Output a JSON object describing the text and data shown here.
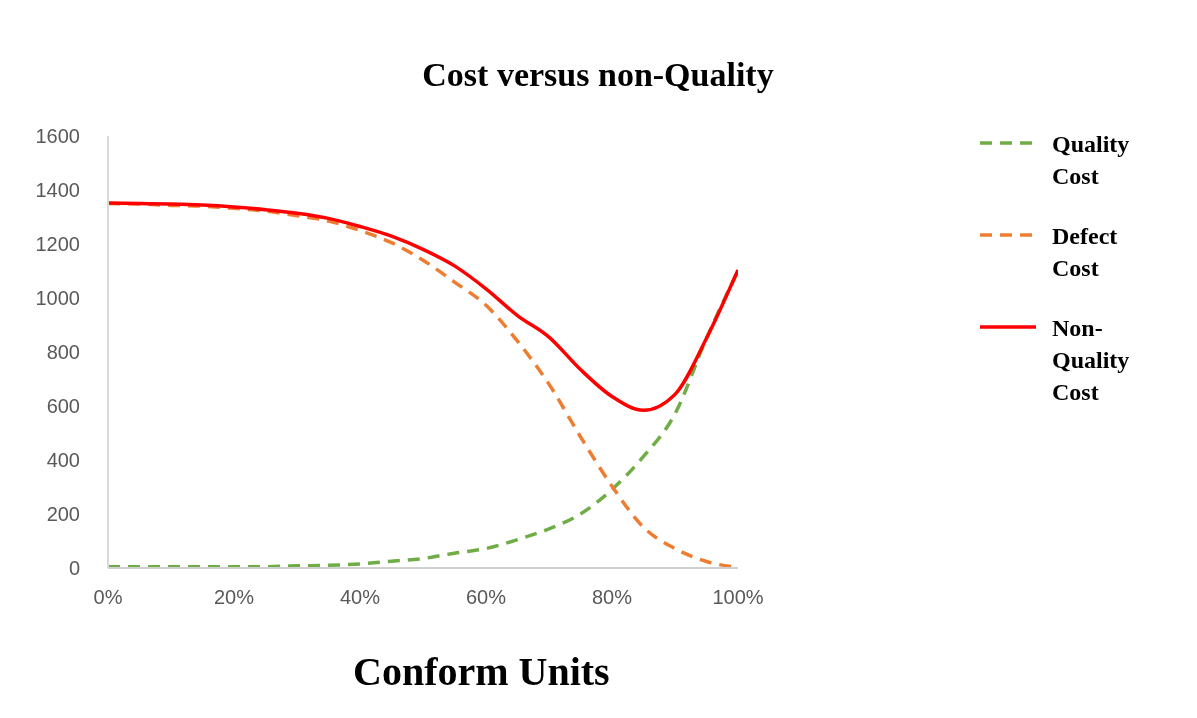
{
  "chart_data": {
    "type": "line",
    "title": "Cost versus non-Quality",
    "xlabel": "Conform Units",
    "x": [
      0,
      5,
      10,
      15,
      20,
      25,
      30,
      35,
      40,
      45,
      50,
      55,
      60,
      65,
      70,
      75,
      80,
      85,
      90,
      95,
      100
    ],
    "series": [
      {
        "name": "Quality Cost",
        "color": "#70ad47",
        "line_style": "dashed",
        "values": [
          5,
          5,
          5,
          5,
          5,
          5,
          8,
          10,
          15,
          25,
          35,
          55,
          72,
          105,
          145,
          200,
          291,
          413,
          571,
          851,
          1100
        ]
      },
      {
        "name": "Defect Cost",
        "color": "#ed7d31",
        "line_style": "dashed",
        "values": [
          1350,
          1348,
          1343,
          1340,
          1332,
          1322,
          1305,
          1285,
          1250,
          1205,
          1140,
          1059,
          973,
          840,
          681,
          486,
          303,
          151,
          72,
          24,
          2
        ]
      },
      {
        "name": "Non-Quality Cost",
        "color": "#ff0000",
        "line_style": "solid",
        "values": [
          1352,
          1350,
          1348,
          1344,
          1337,
          1327,
          1314,
          1295,
          1265,
          1229,
          1180,
          1119,
          1034,
          935,
          855,
          735,
          635,
          584,
          643,
          851,
          1104
        ]
      }
    ],
    "xlim": [
      0,
      100
    ],
    "xticks": [
      {
        "value": 0,
        "label": "0%"
      },
      {
        "value": 20,
        "label": "20%"
      },
      {
        "value": 40,
        "label": "40%"
      },
      {
        "value": 60,
        "label": "60%"
      },
      {
        "value": 80,
        "label": "80%"
      },
      {
        "value": 100,
        "label": "100%"
      }
    ],
    "ylim": [
      0,
      1600
    ],
    "yticks": [
      0,
      200,
      400,
      600,
      800,
      1000,
      1200,
      1400,
      1600
    ],
    "grid": false,
    "legend": "right",
    "marker": "none"
  }
}
